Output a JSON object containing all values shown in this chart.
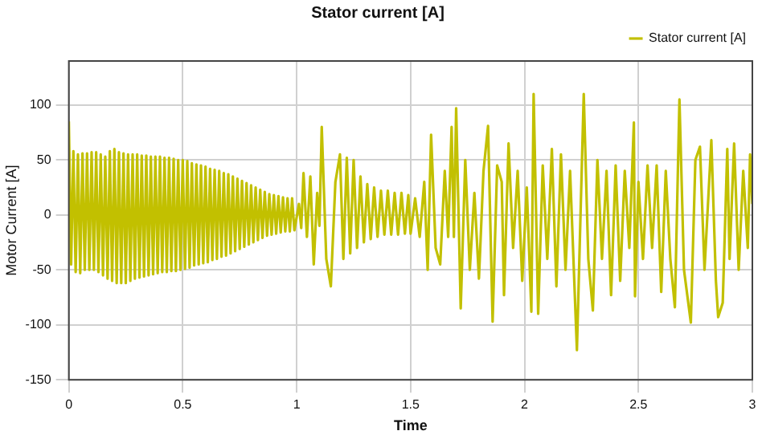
{
  "chart_data": {
    "type": "line",
    "title": "Stator current [A]",
    "xlabel": "Time",
    "ylabel": "Motor Current [A]",
    "xlim": [
      0,
      3
    ],
    "xticks": [
      0,
      0.5,
      1,
      1.5,
      2,
      2.5,
      3
    ],
    "ylim": [
      -150,
      140
    ],
    "yticks": [
      -150,
      -100,
      -50,
      0,
      50,
      100
    ],
    "grid": true,
    "legend": "top right",
    "marker": "none",
    "line_style": "solid",
    "series": [
      {
        "name": "Stator current [A]",
        "color": "#c2c000",
        "x": [
          0,
          0.01,
          0.02,
          0.03,
          0.04,
          0.05,
          0.06,
          0.07,
          0.08,
          0.09,
          0.1,
          0.11,
          0.12,
          0.13,
          0.14,
          0.15,
          0.16,
          0.17,
          0.18,
          0.19,
          0.2,
          0.21,
          0.22,
          0.23,
          0.24,
          0.25,
          0.26,
          0.27,
          0.28,
          0.29,
          0.3,
          0.31,
          0.32,
          0.33,
          0.34,
          0.35,
          0.36,
          0.37,
          0.38,
          0.39,
          0.4,
          0.41,
          0.42,
          0.43,
          0.44,
          0.45,
          0.46,
          0.47,
          0.48,
          0.49,
          0.5,
          0.51,
          0.52,
          0.53,
          0.54,
          0.55,
          0.56,
          0.57,
          0.58,
          0.59,
          0.6,
          0.61,
          0.62,
          0.63,
          0.64,
          0.65,
          0.66,
          0.67,
          0.68,
          0.69,
          0.7,
          0.71,
          0.72,
          0.73,
          0.74,
          0.75,
          0.76,
          0.77,
          0.78,
          0.79,
          0.8,
          0.81,
          0.82,
          0.83,
          0.84,
          0.85,
          0.86,
          0.87,
          0.88,
          0.89,
          0.9,
          0.91,
          0.92,
          0.93,
          0.94,
          0.95,
          0.96,
          0.97,
          0.98,
          0.99,
          1.01,
          1.02,
          1.03,
          1.045,
          1.06,
          1.075,
          1.09,
          1.1,
          1.11,
          1.13,
          1.15,
          1.17,
          1.19,
          1.205,
          1.22,
          1.235,
          1.25,
          1.265,
          1.28,
          1.295,
          1.31,
          1.325,
          1.34,
          1.355,
          1.37,
          1.385,
          1.4,
          1.415,
          1.43,
          1.445,
          1.46,
          1.475,
          1.49,
          1.5,
          1.52,
          1.54,
          1.56,
          1.575,
          1.59,
          1.61,
          1.63,
          1.65,
          1.665,
          1.68,
          1.69,
          1.7,
          1.72,
          1.74,
          1.76,
          1.78,
          1.8,
          1.82,
          1.84,
          1.86,
          1.88,
          1.9,
          1.91,
          1.93,
          1.95,
          1.97,
          1.99,
          2.01,
          2.03,
          2.04,
          2.06,
          2.08,
          2.1,
          2.12,
          2.14,
          2.16,
          2.18,
          2.2,
          2.23,
          2.26,
          2.28,
          2.3,
          2.32,
          2.34,
          2.36,
          2.38,
          2.4,
          2.42,
          2.44,
          2.46,
          2.48,
          2.485,
          2.5,
          2.52,
          2.54,
          2.56,
          2.58,
          2.6,
          2.62,
          2.64,
          2.66,
          2.68,
          2.7,
          2.73,
          2.75,
          2.77,
          2.79,
          2.82,
          2.84,
          2.85,
          2.87,
          2.89,
          2.9,
          2.92,
          2.94,
          2.96,
          2.98,
          2.99,
          3
        ],
        "values": [
          85,
          -45,
          58,
          -52,
          55,
          -53,
          56,
          -50,
          56,
          -50,
          57,
          -50,
          57,
          -52,
          55,
          -55,
          53,
          -58,
          58,
          -60,
          60,
          -62,
          57,
          -62,
          56,
          -62,
          55,
          -60,
          55,
          -58,
          55,
          -57,
          54,
          -56,
          54,
          -55,
          53,
          -54,
          53,
          -53,
          53,
          -52,
          52,
          -52,
          52,
          -51,
          51,
          -51,
          50,
          -50,
          50,
          -49,
          49,
          -48,
          47,
          -46,
          46,
          -45,
          45,
          -44,
          44,
          -43,
          42,
          -41,
          41,
          -40,
          40,
          -38,
          38,
          -37,
          37,
          -35,
          35,
          -33,
          33,
          -31,
          31,
          -29,
          29,
          -27,
          27,
          -25,
          25,
          -23,
          23,
          -21,
          21,
          -19,
          19,
          -18,
          18,
          -17,
          17,
          -16,
          16,
          -15,
          15,
          -15,
          15,
          -14,
          10,
          -12,
          38,
          -20,
          35,
          -45,
          20,
          -10,
          80,
          -40,
          -65,
          30,
          55,
          -40,
          52,
          -35,
          50,
          -30,
          35,
          -25,
          28,
          -22,
          25,
          -20,
          22,
          -18,
          22,
          -18,
          20,
          -18,
          20,
          -17,
          18,
          -17,
          15,
          -20,
          30,
          -50,
          73,
          -30,
          -45,
          40,
          -20,
          80,
          -20,
          97,
          -85,
          50,
          -50,
          20,
          -58,
          40,
          81,
          -97,
          45,
          30,
          -73,
          65,
          -30,
          40,
          -60,
          25,
          -88,
          110,
          -90,
          45,
          -40,
          60,
          -65,
          55,
          -50,
          40,
          -123,
          110,
          -40,
          -87,
          50,
          -40,
          40,
          -73,
          45,
          -60,
          40,
          -30,
          84,
          -74,
          30,
          -40,
          45,
          -30,
          45,
          -70,
          40,
          -40,
          -84,
          105,
          -50,
          -98,
          50,
          62,
          -50,
          68,
          -60,
          -93,
          -80,
          60,
          -40,
          65,
          -50,
          40,
          -30,
          55,
          10
        ]
      }
    ]
  }
}
